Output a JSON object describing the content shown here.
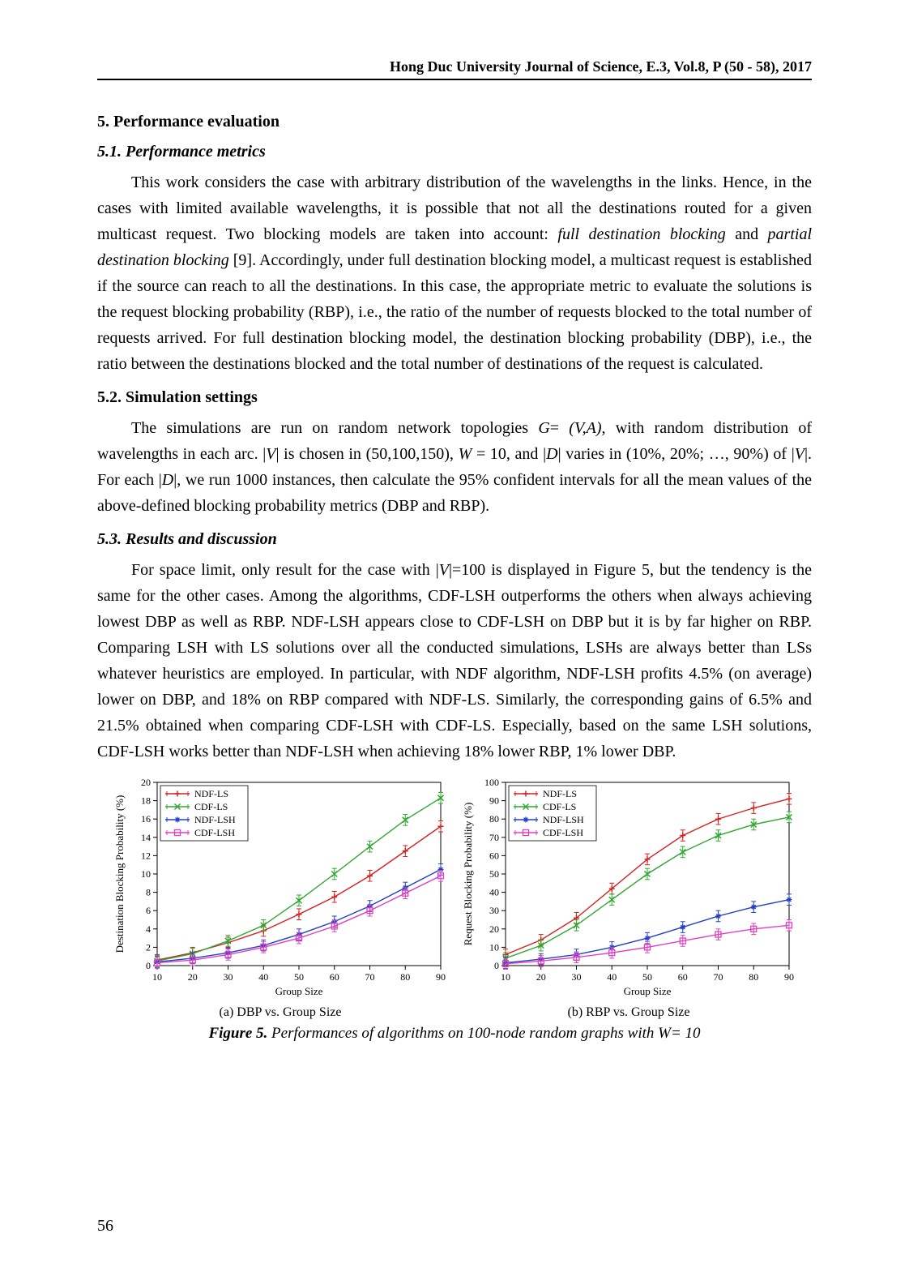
{
  "header": "Hong Duc University Journal of Science, E.3, Vol.8, P (50 - 58), 2017",
  "sections": {
    "s5": "5. Performance evaluation",
    "s51": "5.1. Performance metrics",
    "s52": "5.2. Simulation settings",
    "s53": "5.3. Results and discussion"
  },
  "paragraphs": {
    "p1a": "This work considers the case with arbitrary distribution of the wavelengths in the links. Hence, in the cases with limited available wavelengths, it is possible that not all the destinations routed for a given multicast request. Two blocking models are taken into account: ",
    "p1_full": "full destination blocking",
    "p1_and": " and ",
    "p1_partial": "partial destination blocking",
    "p1b": " [9]. Accordingly, under full destination blocking model, a multicast request is established if the source can reach to all the destinations. In this case, the appropriate metric to evaluate the solutions is the request blocking probability (RBP), i.e., the ratio of the number of requests blocked to the total number of requests arrived. For full destination blocking model, the destination blocking probability (DBP), i.e., the ratio between the destinations blocked and the total number of destinations of the request is calculated.",
    "p2a": "The simulations are run on random network topologies ",
    "p2g": "G",
    "p2eq": "= ",
    "p2va": "(V,A)",
    "p2b": ", with random distribution of wavelengths in each arc. |",
    "p2V": "V",
    "p2c": "| is chosen in (50,100,150), ",
    "p2W": "W ",
    "p2d": "= 10, and |",
    "p2D": "D",
    "p2e": "| varies in (10%, 20%; …, 90%) of |",
    "p2V2": "V",
    "p2f": "|. For each |",
    "p2D2": "D",
    "p2g2": "|, we run 1000 instances, then calculate the 95% confident intervals for all the mean values of the above-defined blocking probability metrics (DBP and RBP).",
    "p3a": "For space limit, only result for the case with |",
    "p3V": "V",
    "p3b": "|=100 is displayed in Figure 5, but the tendency is the same for the other cases. Among the algorithms, CDF-LSH outperforms the others when always achieving lowest DBP as well as RBP. NDF-LSH appears close to CDF-LSH on DBP but it is by far higher on RBP. Comparing LSH with LS solutions over all the conducted simulations, LSHs are always better than LSs whatever heuristics are employed. In particular, with NDF algorithm, NDF-LSH profits 4.5% (on average) lower on DBP, and 18% on RBP compared with NDF-LS. Similarly, the corresponding gains of 6.5% and 21.5% obtained when comparing CDF-LSH with CDF-LS. Especially, based on the same LSH solutions, CDF-LSH works better than NDF-LSH when achieving 18% lower RBP, 1% lower DBP."
  },
  "figure": {
    "caption_label": "Figure 5.",
    "caption_text": " Performances of algorithms on 100-node random graphs with W= 10",
    "sub_a": "(a) DBP vs. Group Size",
    "sub_b": "(b) RBP vs. Group Size",
    "xlabel": "Group Size",
    "ylabel_a": "Destination Blocking Probability (%)",
    "ylabel_b": "Request Blocking Probability (%)",
    "xticks": [
      10,
      20,
      30,
      40,
      50,
      60,
      70,
      80,
      90
    ],
    "yticks_a": [
      0,
      2,
      4,
      6,
      8,
      10,
      12,
      14,
      16,
      18,
      20
    ],
    "yticks_b": [
      0,
      10,
      20,
      30,
      40,
      50,
      60,
      70,
      80,
      90,
      100
    ],
    "x_range": [
      10,
      90
    ],
    "y_range_a": [
      0,
      20
    ],
    "y_range_b": [
      0,
      100
    ],
    "legend": [
      "NDF-LS",
      "CDF-LS",
      "NDF-LSH",
      "CDF-LSH"
    ],
    "colors": {
      "NDF-LS": "#d92020",
      "CDF-LS": "#2fa82f",
      "NDF-LSH": "#2040c8",
      "CDF-LSH": "#e040c0"
    },
    "markers": {
      "NDF-LS": "plus",
      "CDF-LS": "x",
      "NDF-LSH": "star",
      "CDF-LSH": "square"
    },
    "line_width": 1.4,
    "marker_size": 7,
    "tick_fontsize": 12,
    "axis_label_fontsize": 13,
    "legend_fontsize": 12,
    "data_a": {
      "NDF-LS": [
        0.6,
        1.4,
        2.5,
        3.8,
        5.6,
        7.5,
        9.8,
        12.5,
        15.2
      ],
      "CDF-LS": [
        0.5,
        1.3,
        2.7,
        4.4,
        7.1,
        10.0,
        13.0,
        15.9,
        18.3
      ],
      "NDF-LSH": [
        0.4,
        0.8,
        1.4,
        2.2,
        3.4,
        4.8,
        6.5,
        8.5,
        10.5
      ],
      "CDF-LSH": [
        0.3,
        0.6,
        1.2,
        2.0,
        3.0,
        4.3,
        6.0,
        7.9,
        9.8
      ]
    },
    "data_b": {
      "NDF-LS": [
        6,
        14,
        26,
        42,
        58,
        71,
        80,
        86,
        91
      ],
      "CDF-LS": [
        4,
        11,
        22,
        36,
        50,
        62,
        71,
        77,
        81
      ],
      "NDF-LSH": [
        1.5,
        3.5,
        6,
        10,
        15,
        21,
        27,
        32,
        36
      ],
      "CDF-LSH": [
        1,
        2.5,
        4.5,
        7,
        10,
        13.5,
        17,
        20,
        22
      ]
    },
    "err_a": 0.6,
    "err_b": 3
  },
  "pagenum": "56"
}
